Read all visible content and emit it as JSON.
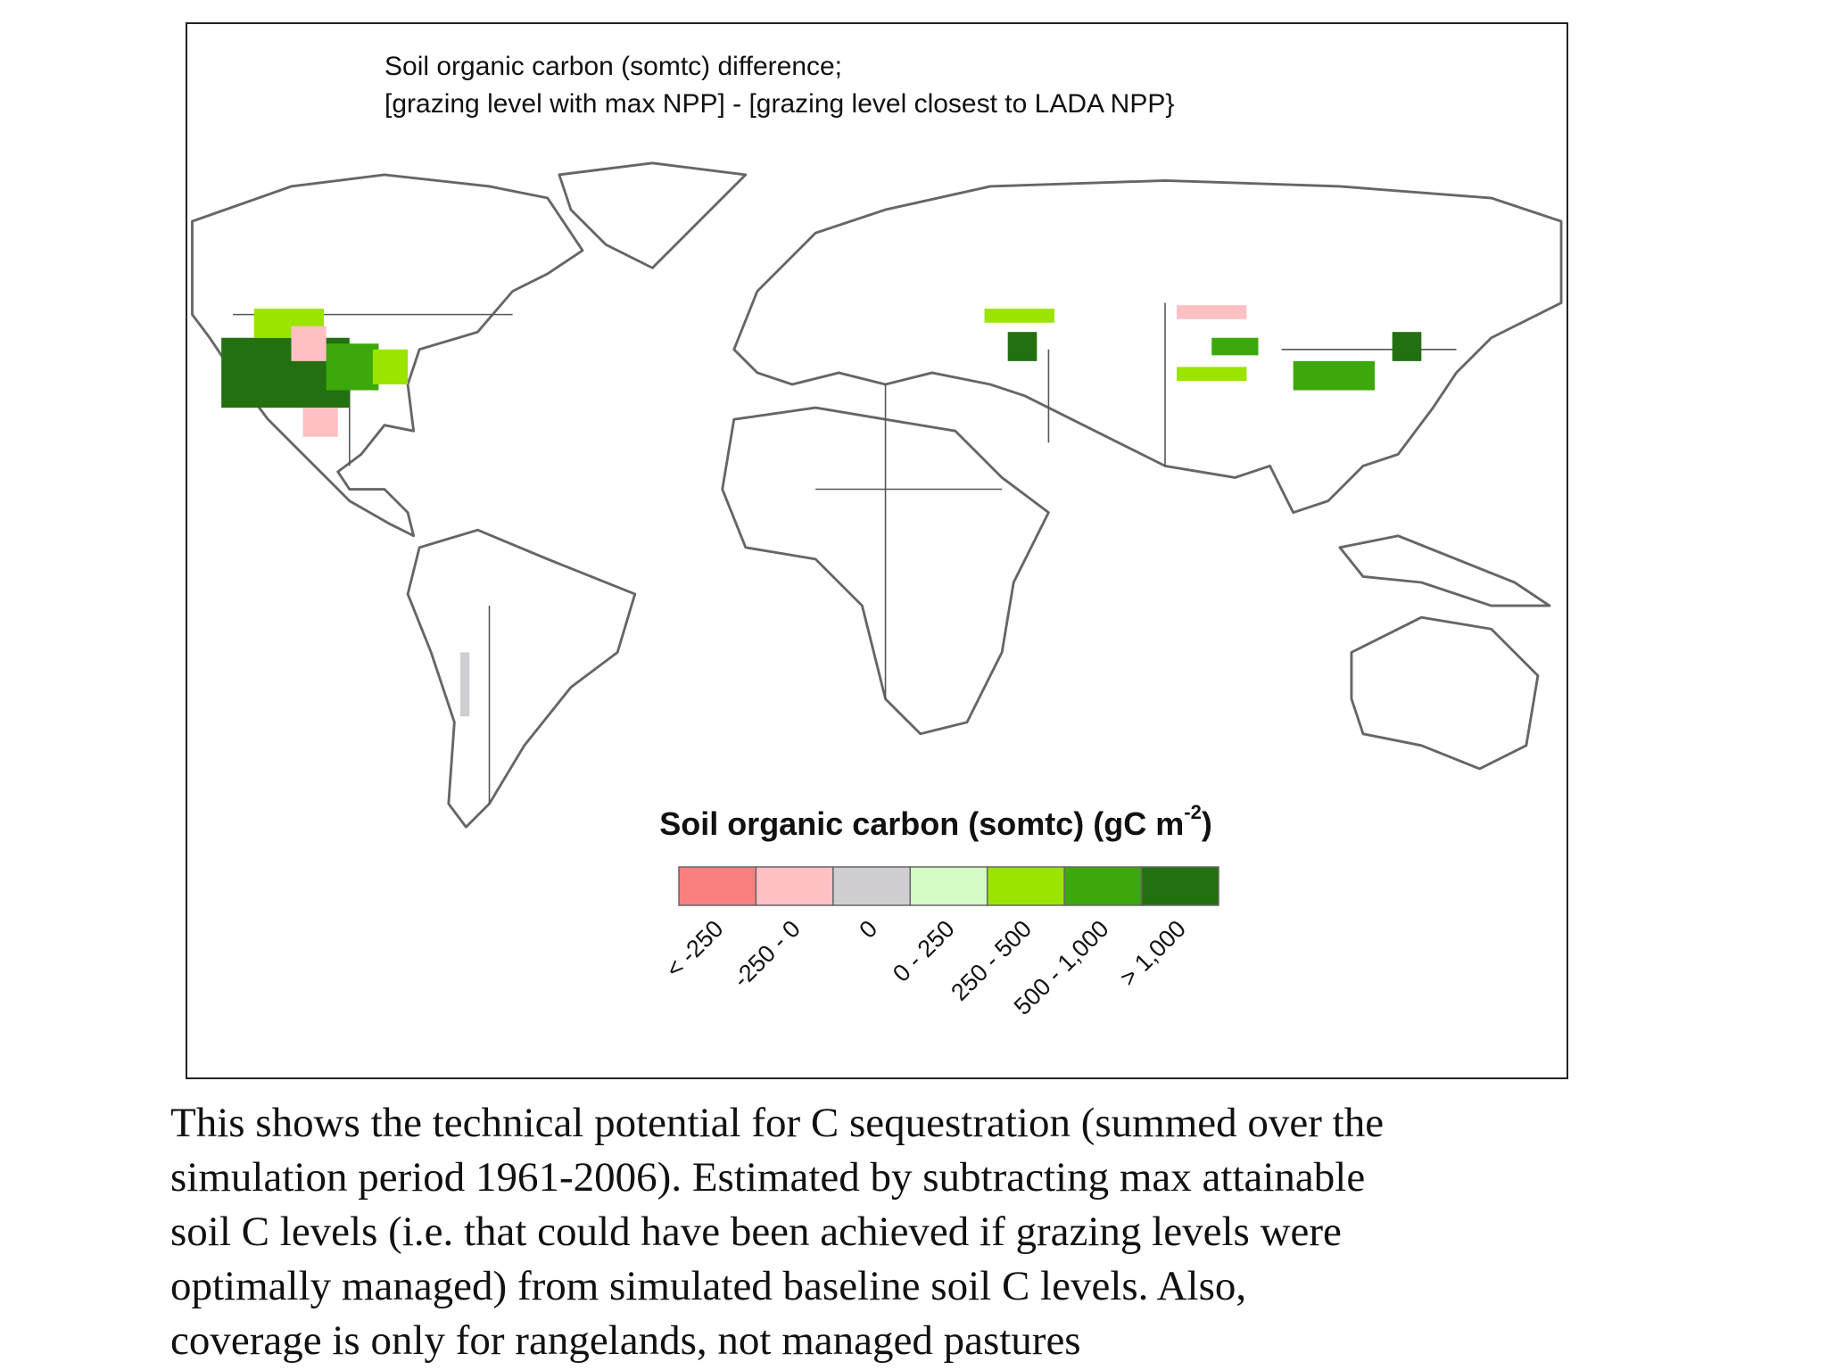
{
  "title": [
    "Soil organic carbon (somtc) difference;",
    "[grazing level with max NPP] - [grazing level closest to LADA NPP}"
  ],
  "legend": {
    "title": "Soil organic carbon (somtc) (gC m",
    "title_superscript": "-2",
    "title_end": ")",
    "items": [
      {
        "label": "< -250",
        "color": "#f88080"
      },
      {
        "label": "-250 - 0",
        "color": "#ffc0c4"
      },
      {
        "label": "0",
        "color": "#d0ced2"
      },
      {
        "label": "0 - 250",
        "color": "#d4fcc4"
      },
      {
        "label": "250 - 500",
        "color": "#9ae400"
      },
      {
        "label": "500 - 1,000",
        "color": "#3ca80c"
      },
      {
        "label": "> 1,000",
        "color": "#227010"
      }
    ]
  },
  "caption": [
    "This shows the technical potential for C sequestration (summed over the",
    "simulation period 1961-2006). Estimated by subtracting max attainable",
    "soil C levels (i.e. that could have been achieved if grazing levels were",
    "optimally managed) from simulated baseline soil C levels. Also,",
    "coverage is only for rangelands, not managed pastures"
  ]
}
